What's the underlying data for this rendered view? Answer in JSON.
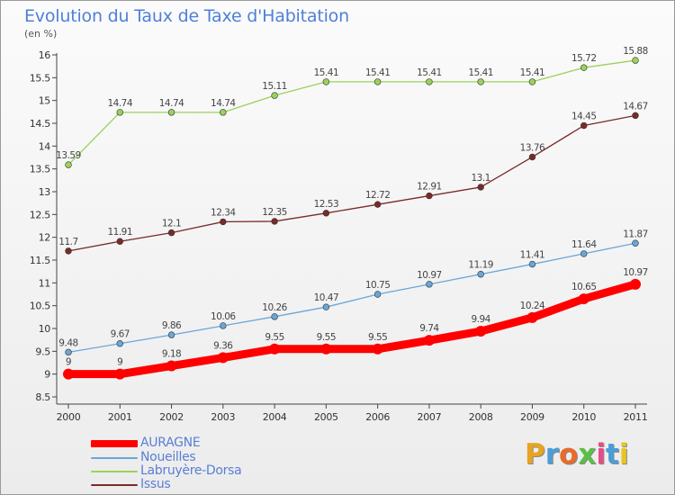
{
  "header": {
    "title": "Evolution du Taux de Taxe d'Habitation",
    "subtitle": "(en %)"
  },
  "logo": {
    "text": "Proxiti",
    "letter_colors": [
      "#e8a321",
      "#4a9ed8",
      "#e86b2a",
      "#5abf48",
      "#e84b8a",
      "#4a9ed8",
      "#e8c421"
    ]
  },
  "chart_data": {
    "type": "line",
    "title": "Evolution du Taux de Taxe d'Habitation",
    "subtitle": "(en %)",
    "xlabel": "",
    "ylabel": "",
    "x": [
      "2000",
      "2001",
      "2002",
      "2003",
      "2004",
      "2005",
      "2006",
      "2007",
      "2008",
      "2009",
      "2010",
      "2011"
    ],
    "ylim": [
      8.5,
      16
    ],
    "yticks": [
      "8.5",
      "9",
      "9.5",
      "10",
      "10.5",
      "11",
      "11.5",
      "12",
      "12.5",
      "13",
      "13.5",
      "14",
      "14.5",
      "15",
      "15.5",
      "16"
    ],
    "grid": false,
    "legend_position": "bottom-left",
    "series": [
      {
        "name": "AURAGNE",
        "color": "#ff0000",
        "values": [
          9,
          9,
          9.18,
          9.36,
          9.55,
          9.55,
          9.55,
          9.74,
          9.94,
          10.24,
          10.65,
          10.97
        ],
        "labels": [
          "9",
          "9",
          "9.18",
          "9.36",
          "9.55",
          "9.55",
          "9.55",
          "9.74",
          "9.94",
          "10.24",
          "10.65",
          "10.97"
        ]
      },
      {
        "name": "Noueilles",
        "color": "#6aa6d8",
        "values": [
          9.48,
          9.67,
          9.86,
          10.06,
          10.26,
          10.47,
          10.75,
          10.97,
          11.19,
          11.41,
          11.64,
          11.87
        ],
        "labels": [
          "9.48",
          "9.67",
          "9.86",
          "10.06",
          "10.26",
          "10.47",
          "10.75",
          "10.97",
          "11.19",
          "11.41",
          "11.64",
          "11.87"
        ]
      },
      {
        "name": "Labruyère-Dorsa",
        "color": "#9ad25a",
        "values": [
          13.59,
          14.74,
          14.74,
          14.74,
          15.11,
          15.41,
          15.41,
          15.41,
          15.41,
          15.41,
          15.72,
          15.88
        ],
        "labels": [
          "13.59",
          "14.74",
          "14.74",
          "14.74",
          "15.11",
          "15.41",
          "15.41",
          "15.41",
          "15.41",
          "15.41",
          "15.72",
          "15.88"
        ]
      },
      {
        "name": "Issus",
        "color": "#7a2a2a",
        "values": [
          11.7,
          11.91,
          12.1,
          12.34,
          12.35,
          12.53,
          12.72,
          12.91,
          13.1,
          13.76,
          14.45,
          14.67
        ],
        "labels": [
          "11.7",
          "11.91",
          "12.1",
          "12.34",
          "12.35",
          "12.53",
          "12.72",
          "12.91",
          "13.1",
          "13.76",
          "14.45",
          "14.67"
        ]
      }
    ]
  }
}
